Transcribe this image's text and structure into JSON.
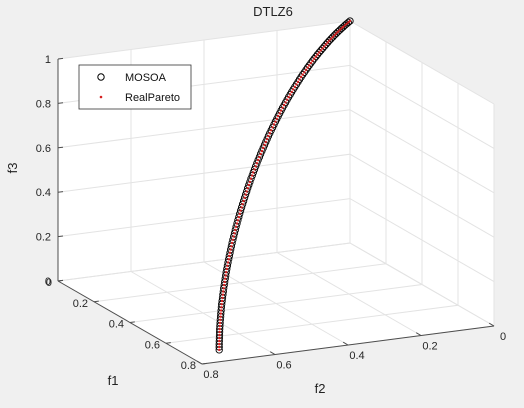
{
  "chart_data": {
    "type": "scatter",
    "projection": "3d",
    "title": "DTLZ6",
    "xlabel": "f1",
    "ylabel": "f2",
    "zlabel": "f3",
    "xlim": [
      0,
      0.8
    ],
    "ylim": [
      0,
      0.8
    ],
    "zlim": [
      0,
      1
    ],
    "z_ticks": [
      0,
      0.2,
      0.4,
      0.6,
      0.8,
      1
    ],
    "x_ticks": [
      0,
      0.2,
      0.4,
      0.6,
      0.8
    ],
    "y_ticks": [
      0,
      0.2,
      0.4,
      0.6,
      0.8
    ],
    "z_tick_labels": [
      "0",
      "0.2",
      "0.4",
      "0.6",
      "0.8",
      "1"
    ],
    "x_tick_labels": [
      "0",
      "0.2",
      "0.4",
      "0.6",
      "0.8"
    ],
    "y_tick_labels": [
      "0",
      "0.2",
      "0.4",
      "0.6",
      "0.8"
    ],
    "grid": true,
    "legend_position": "top-left",
    "series": [
      {
        "name": "MOSOA",
        "marker": "circle-open",
        "color": "#000000",
        "curve": "f1 = f2 = 0.7071*cos(theta*pi/2), f3 = sin(theta*pi/2), theta from 0 to 1",
        "x_start": 0.7071,
        "y_start": 0.7071,
        "z_start": 0,
        "x_end": 0,
        "y_end": 0,
        "z_end": 1,
        "count": 120
      },
      {
        "name": "RealPareto",
        "marker": "dot",
        "color": "#d62020",
        "curve": "f1 = f2 = 0.7071*cos(theta*pi/2), f3 = sin(theta*pi/2), theta from 0 to 1",
        "x_start": 0.7071,
        "y_start": 0.7071,
        "z_start": 0,
        "x_end": 0,
        "y_end": 0,
        "z_end": 1,
        "count": 120
      }
    ]
  }
}
